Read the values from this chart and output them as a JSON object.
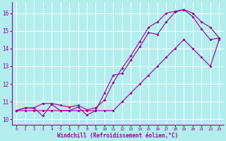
{
  "xlabel": "Windchill (Refroidissement éolien,°C)",
  "xlim": [
    -0.5,
    23.5
  ],
  "ylim": [
    9.7,
    16.6
  ],
  "yticks": [
    10,
    11,
    12,
    13,
    14,
    15,
    16
  ],
  "xticks": [
    0,
    1,
    2,
    3,
    4,
    5,
    6,
    7,
    8,
    9,
    10,
    11,
    12,
    13,
    14,
    15,
    16,
    17,
    18,
    19,
    20,
    21,
    22,
    23
  ],
  "bg_color": "#b2eeee",
  "grid_color": "#ffffff",
  "line_color": "#990099",
  "curve_main": [
    10.5,
    10.65,
    10.65,
    10.2,
    10.85,
    10.5,
    10.5,
    10.7,
    10.25,
    10.5,
    11.5,
    12.5,
    12.6,
    13.35,
    14.1,
    14.9,
    14.8,
    15.5,
    16.05,
    16.2,
    15.8,
    15.1,
    14.5,
    14.6
  ],
  "curve_min": [
    10.5,
    10.5,
    10.5,
    10.5,
    10.5,
    10.5,
    10.5,
    10.5,
    10.5,
    10.5,
    10.5,
    10.5,
    11.0,
    11.5,
    12.0,
    12.5,
    13.0,
    13.5,
    14.0,
    14.5,
    14.0,
    13.5,
    13.0,
    14.5
  ],
  "curve_max": [
    10.5,
    10.65,
    10.65,
    10.9,
    10.9,
    10.8,
    10.7,
    10.8,
    10.55,
    10.65,
    11.1,
    12.1,
    12.9,
    13.6,
    14.4,
    15.2,
    15.5,
    16.0,
    16.1,
    16.2,
    16.0,
    15.5,
    15.2,
    14.6
  ]
}
